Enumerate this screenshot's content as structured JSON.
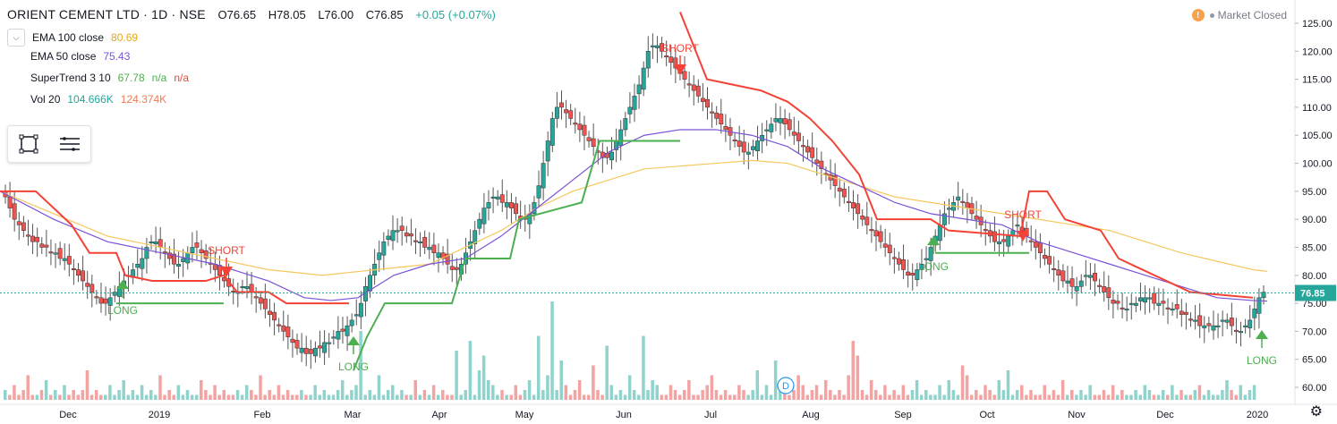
{
  "header": {
    "symbol": "ORIENT CEMENT LTD · 1D · NSE",
    "open": "O76.65",
    "high": "H78.05",
    "low": "L76.00",
    "close": "C76.85",
    "change": "+0.05 (+0.07%)"
  },
  "legend": {
    "ema100_label": "EMA 100 close",
    "ema100_value": "80.69",
    "ema50_label": "EMA 50 close",
    "ema50_value": "75.43",
    "supertrend_label": "SuperTrend 3 10",
    "supertrend_value": "67.78",
    "supertrend_na1": "n/a",
    "supertrend_na2": "n/a",
    "vol_label": "Vol 20",
    "vol_value": "104.666K",
    "vol_ma_value": "124.374K"
  },
  "status": {
    "market": "Market Closed",
    "warning_icon": "!"
  },
  "colors": {
    "up": "#26a69a",
    "down": "#ef5350",
    "ema100": "#f6c85f",
    "ema50": "#7b52d8",
    "supertrend_up": "#4caf50",
    "supertrend_down": "#f44336",
    "long_signal": "#4caf50",
    "short_signal": "#f44336",
    "price_label_bg": "#26a69a"
  },
  "chart_data": {
    "type": "candlestick",
    "price_axis": {
      "ticks": [
        "125.00",
        "120.00",
        "115.00",
        "110.00",
        "105.00",
        "100.00",
        "95.00",
        "90.00",
        "85.00",
        "80.00",
        "75.00",
        "70.00",
        "65.00",
        "60.00"
      ],
      "ylim": [
        58,
        127
      ]
    },
    "time_axis": {
      "ticks": [
        "Dec",
        "2019",
        "Feb",
        "Mar",
        "Apr",
        "May",
        "Jun",
        "Jul",
        "Aug",
        "Sep",
        "Oct",
        "Nov",
        "Dec",
        "2020"
      ]
    },
    "last_price": "76.85",
    "close_series": [
      94,
      92,
      90,
      89,
      88,
      87,
      86,
      86,
      85,
      85,
      84,
      84,
      83,
      83,
      82,
      81,
      80,
      79,
      78,
      77,
      76,
      75,
      75,
      76,
      77,
      78,
      79,
      80,
      81,
      82,
      83,
      85,
      86,
      86,
      85,
      84,
      83,
      82,
      82,
      83,
      84,
      85,
      85,
      84,
      83,
      82,
      81,
      80,
      79,
      78,
      77,
      77,
      78,
      78,
      77,
      76,
      75,
      74,
      73,
      72,
      71,
      70,
      69,
      68,
      67,
      67,
      66,
      66,
      67,
      67,
      68,
      68,
      69,
      70,
      70,
      71,
      72,
      73,
      75,
      78,
      80,
      82,
      84,
      86,
      87,
      88,
      88,
      88,
      87,
      87,
      86,
      86,
      85,
      85,
      84,
      84,
      83,
      82,
      81,
      81,
      82,
      84,
      86,
      88,
      90,
      92,
      93,
      94,
      94,
      93,
      93,
      92,
      91,
      90,
      90,
      91,
      93,
      96,
      100,
      104,
      108,
      110,
      110,
      109,
      108,
      107,
      106,
      105,
      104,
      103,
      102,
      101,
      101,
      102,
      104,
      106,
      108,
      110,
      112,
      114,
      117,
      120,
      121,
      121,
      120,
      119,
      118,
      117,
      116,
      115,
      114,
      113,
      112,
      111,
      110,
      109,
      108,
      107,
      106,
      105,
      104,
      103,
      102,
      102,
      103,
      104,
      105,
      106,
      107,
      108,
      108,
      107,
      106,
      105,
      104,
      103,
      102,
      101,
      100,
      99,
      98,
      97,
      96,
      95,
      94,
      93,
      92,
      91,
      90,
      89,
      88,
      87,
      86,
      85,
      84,
      83,
      82,
      81,
      80,
      80,
      81,
      82,
      83,
      85,
      87,
      89,
      91,
      92,
      93,
      94,
      93,
      92,
      91,
      90,
      89,
      88,
      87,
      86,
      86,
      86,
      87,
      88,
      89,
      88,
      87,
      86,
      85,
      84,
      83,
      82,
      81,
      80,
      79,
      79,
      78,
      78,
      79,
      80,
      80,
      79,
      78,
      77,
      76,
      75,
      75,
      74,
      74,
      75,
      75,
      76,
      76,
      76,
      75,
      75,
      75,
      74,
      74,
      74,
      73,
      73,
      72,
      72,
      71,
      71,
      71,
      71,
      71,
      72,
      72,
      71,
      70,
      70,
      71,
      72,
      74,
      76,
      77
    ],
    "volume_series": [
      2,
      1,
      3,
      1,
      2,
      5,
      1,
      1,
      2,
      4,
      1,
      2,
      1,
      3,
      1,
      2,
      1,
      2,
      6,
      1,
      2,
      1,
      1,
      3,
      1,
      2,
      4,
      1,
      2,
      1,
      3,
      1,
      2,
      1,
      5,
      1,
      2,
      1,
      3,
      1,
      2,
      1,
      1,
      4,
      2,
      1,
      3,
      1,
      2,
      1,
      1,
      2,
      1,
      3,
      2,
      1,
      5,
      1,
      2,
      1,
      3,
      1,
      2,
      1,
      1,
      2,
      1,
      1,
      3,
      1,
      2,
      1,
      1,
      2,
      4,
      1,
      2,
      3,
      14,
      1,
      2,
      1,
      5,
      1,
      2,
      3,
      1,
      2,
      1,
      1,
      4,
      1,
      2,
      1,
      3,
      1,
      2,
      1,
      1,
      10,
      1,
      2,
      12,
      1,
      6,
      9,
      4,
      3,
      1,
      2,
      1,
      1,
      3,
      1,
      2,
      4,
      1,
      13,
      2,
      5,
      20,
      2,
      8,
      3,
      1,
      2,
      4,
      1,
      1,
      7,
      2,
      1,
      11,
      3,
      1,
      2,
      1,
      5,
      2,
      1,
      13,
      2,
      4,
      3,
      1,
      1,
      3,
      2,
      1,
      2,
      4,
      1,
      1,
      2,
      3,
      5,
      2,
      1,
      2,
      1,
      1,
      3,
      2,
      1,
      2,
      6,
      1,
      3,
      1,
      8,
      4,
      2,
      1,
      2,
      5,
      3,
      1,
      2,
      3,
      1,
      4,
      2,
      1,
      2,
      1,
      5,
      12,
      9,
      2,
      1,
      4,
      2,
      1,
      3,
      1,
      2,
      1,
      3,
      1,
      2,
      4,
      1,
      2,
      1,
      1,
      3,
      1,
      4,
      2,
      1,
      7,
      5,
      1,
      2,
      1,
      3,
      2,
      1,
      4,
      2,
      6,
      1,
      2,
      3,
      1,
      2,
      1,
      1,
      3,
      1,
      2,
      1,
      4,
      1,
      2,
      1,
      2,
      1,
      3,
      1,
      1,
      2,
      1,
      3,
      1,
      2,
      1,
      1,
      2,
      1,
      3,
      2,
      1,
      1,
      2,
      1,
      3,
      1,
      2,
      1,
      1,
      2,
      3,
      1,
      2,
      1,
      1,
      2,
      4,
      2,
      1,
      3,
      1,
      2,
      3
    ],
    "ema100": [
      [
        0,
        95
      ],
      [
        60,
        91
      ],
      [
        120,
        87
      ],
      [
        180,
        85
      ],
      [
        240,
        83
      ],
      [
        300,
        81
      ],
      [
        360,
        80
      ],
      [
        420,
        81
      ],
      [
        480,
        82
      ],
      [
        520,
        85
      ],
      [
        560,
        88
      ],
      [
        600,
        92
      ],
      [
        640,
        95
      ],
      [
        680,
        97
      ],
      [
        720,
        99
      ],
      [
        760,
        99.5
      ],
      [
        800,
        100
      ],
      [
        840,
        100.5
      ],
      [
        880,
        100
      ],
      [
        920,
        98
      ],
      [
        960,
        96
      ],
      [
        1000,
        94
      ],
      [
        1040,
        93
      ],
      [
        1080,
        92
      ],
      [
        1120,
        91
      ],
      [
        1160,
        90
      ],
      [
        1200,
        89
      ],
      [
        1240,
        88
      ],
      [
        1280,
        86
      ],
      [
        1320,
        84
      ],
      [
        1360,
        82.5
      ],
      [
        1400,
        81
      ],
      [
        1416,
        80.7
      ]
    ],
    "ema50": [
      [
        0,
        95
      ],
      [
        60,
        90
      ],
      [
        120,
        86
      ],
      [
        180,
        84
      ],
      [
        240,
        82
      ],
      [
        300,
        79
      ],
      [
        340,
        76
      ],
      [
        370,
        75.5
      ],
      [
        400,
        76
      ],
      [
        440,
        80
      ],
      [
        480,
        82
      ],
      [
        520,
        83
      ],
      [
        560,
        87
      ],
      [
        600,
        92
      ],
      [
        640,
        97
      ],
      [
        680,
        102
      ],
      [
        720,
        105
      ],
      [
        760,
        106
      ],
      [
        800,
        106
      ],
      [
        840,
        105
      ],
      [
        880,
        103
      ],
      [
        920,
        99
      ],
      [
        960,
        96
      ],
      [
        1000,
        93
      ],
      [
        1040,
        91
      ],
      [
        1080,
        90
      ],
      [
        1120,
        89
      ],
      [
        1160,
        86
      ],
      [
        1200,
        84
      ],
      [
        1240,
        82
      ],
      [
        1280,
        80
      ],
      [
        1320,
        78
      ],
      [
        1360,
        76
      ],
      [
        1400,
        75.5
      ],
      [
        1416,
        75.4
      ]
    ],
    "signals": [
      {
        "type": "LONG",
        "label": "LONG"
      },
      {
        "type": "SHORT",
        "label": "SHORT"
      },
      {
        "type": "LONG",
        "label": "LONG"
      },
      {
        "type": "SHORT",
        "label": "SHORT"
      },
      {
        "type": "LONG",
        "label": "LONG"
      },
      {
        "type": "SHORT",
        "label": "SHORT"
      },
      {
        "type": "LONG",
        "label": "LONG"
      }
    ],
    "volume_marker": "D"
  }
}
